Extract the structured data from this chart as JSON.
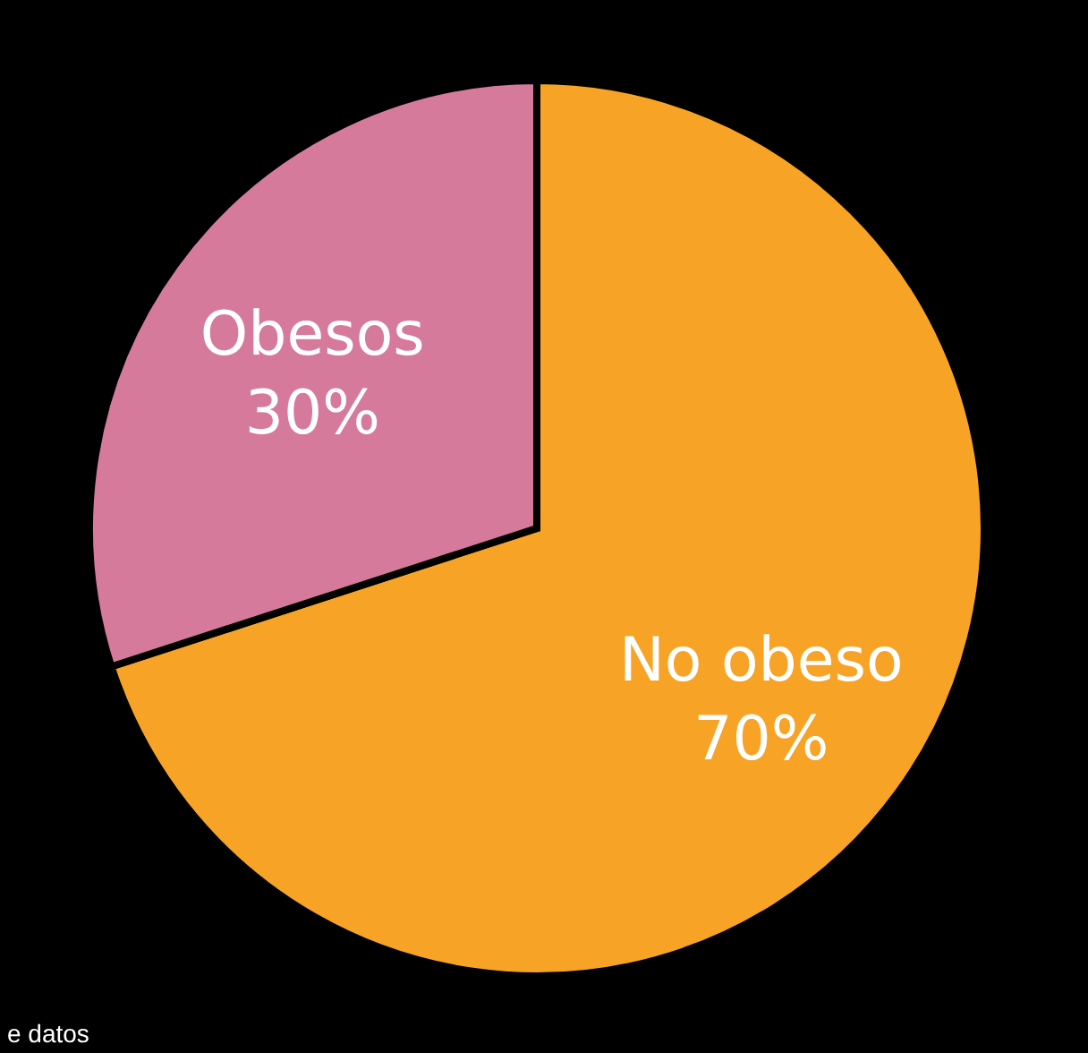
{
  "chart_data": {
    "type": "pie",
    "categories": [
      "No obeso",
      "Obesos"
    ],
    "values": [
      70,
      30
    ],
    "colors": [
      "#f7a326",
      "#d67a9c"
    ],
    "value_labels": [
      "70%",
      "30%"
    ],
    "annotations": [
      "e datos"
    ]
  }
}
